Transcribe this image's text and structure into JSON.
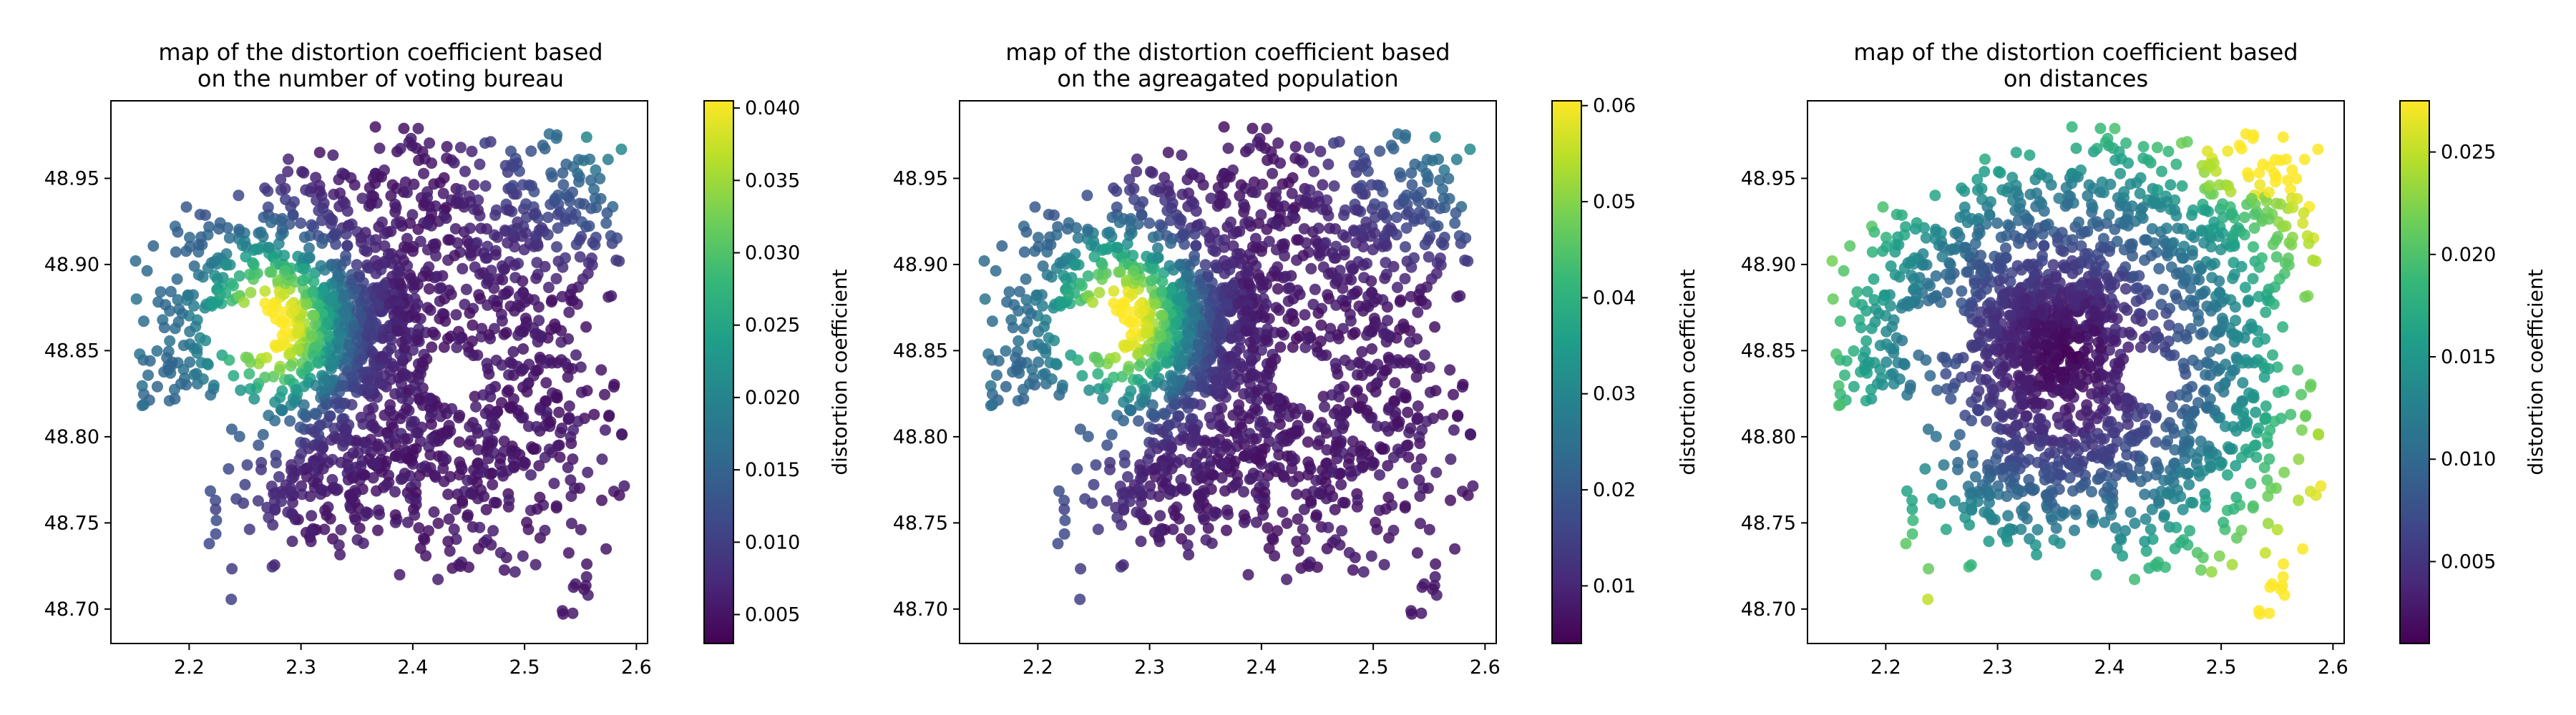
{
  "chart_data": [
    {
      "type": "scatter",
      "title_lines": [
        "map of the distortion coefficient based",
        "on the number of voting bureau"
      ],
      "xlim": [
        2.13,
        2.61
      ],
      "ylim": [
        48.68,
        48.995
      ],
      "x_ticks": [
        2.2,
        2.3,
        2.4,
        2.5,
        2.6
      ],
      "y_ticks": [
        48.7,
        48.75,
        48.8,
        48.85,
        48.9,
        48.95
      ],
      "colorbar": {
        "label": "distortion coefficient",
        "range": [
          0.003,
          0.0405
        ],
        "ticks": [
          0.005,
          0.01,
          0.015,
          0.02,
          0.025,
          0.03,
          0.035,
          0.04
        ],
        "colormap": "viridis"
      },
      "pattern": "hotspot_west",
      "hotspot": [
        2.28,
        48.865
      ],
      "series": []
    },
    {
      "type": "scatter",
      "title_lines": [
        "map of the distortion coefficient based",
        "on the agreagated population"
      ],
      "xlim": [
        2.13,
        2.61
      ],
      "ylim": [
        48.68,
        48.995
      ],
      "x_ticks": [
        2.2,
        2.3,
        2.4,
        2.5,
        2.6
      ],
      "y_ticks": [
        48.7,
        48.75,
        48.8,
        48.85,
        48.9,
        48.95
      ],
      "colorbar": {
        "label": "distortion coefficient",
        "range": [
          0.004,
          0.0605
        ],
        "ticks": [
          0.01,
          0.02,
          0.03,
          0.04,
          0.05,
          0.06
        ],
        "colormap": "viridis"
      },
      "pattern": "hotspot_west",
      "hotspot": [
        2.28,
        48.868
      ],
      "series": []
    },
    {
      "type": "scatter",
      "title_lines": [
        "map of the distortion coefficient based",
        "on distances"
      ],
      "xlim": [
        2.13,
        2.61
      ],
      "ylim": [
        48.68,
        48.995
      ],
      "x_ticks": [
        2.2,
        2.3,
        2.4,
        2.5,
        2.6
      ],
      "y_ticks": [
        48.7,
        48.75,
        48.8,
        48.85,
        48.9,
        48.95
      ],
      "colorbar": {
        "label": "distortion coefficient",
        "range": [
          0.001,
          0.0275
        ],
        "ticks": [
          0.005,
          0.01,
          0.015,
          0.02,
          0.025
        ],
        "colormap": "viridis"
      },
      "pattern": "radial",
      "center": [
        2.36,
        48.845
      ],
      "series": []
    }
  ],
  "colors": {
    "viridis": [
      "#440154",
      "#482878",
      "#3e4989",
      "#31688e",
      "#26828e",
      "#1f9e89",
      "#35b779",
      "#6ece58",
      "#b5de2b",
      "#fde725"
    ]
  }
}
